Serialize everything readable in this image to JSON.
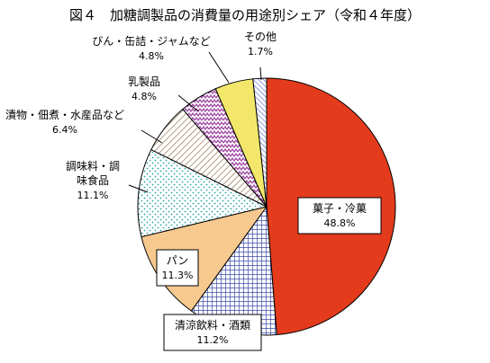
{
  "chart_data": {
    "type": "pie",
    "title": "図４　加糖調製品の消費量の用途別シェア（令和４年度）",
    "slices": [
      {
        "lines": [
          "菓子・冷菓",
          "48.8%"
        ],
        "value": 48.8,
        "color": "#e33b1c",
        "pattern": "solid"
      },
      {
        "lines": [
          "清涼飲料・酒類",
          "11.2%"
        ],
        "value": 11.2,
        "color": "#3b4aa5",
        "pattern": "grid"
      },
      {
        "lines": [
          "パン",
          "11.3%"
        ],
        "value": 11.3,
        "color": "#f7c98f",
        "pattern": "solid"
      },
      {
        "lines": [
          "調味料・調",
          "味食品",
          "11.1%"
        ],
        "value": 11.1,
        "color": "#2aa6a6",
        "pattern": "dots"
      },
      {
        "lines": [
          "漬物・佃煮・水産品など",
          "6.4%"
        ],
        "value": 6.4,
        "color": "#9b7a5a",
        "pattern": "hatch"
      },
      {
        "lines": [
          "乳製品",
          "4.8%"
        ],
        "value": 4.8,
        "color": "#9b3fa0",
        "pattern": "zigzag"
      },
      {
        "lines": [
          "びん・缶詰・ジャムなど",
          "4.8%"
        ],
        "value": 4.8,
        "color": "#f2e76a",
        "pattern": "solid"
      },
      {
        "lines": [
          "その他",
          "1.7%"
        ],
        "value": 1.7,
        "color": "#4a5ad0",
        "pattern": "diag"
      }
    ]
  }
}
